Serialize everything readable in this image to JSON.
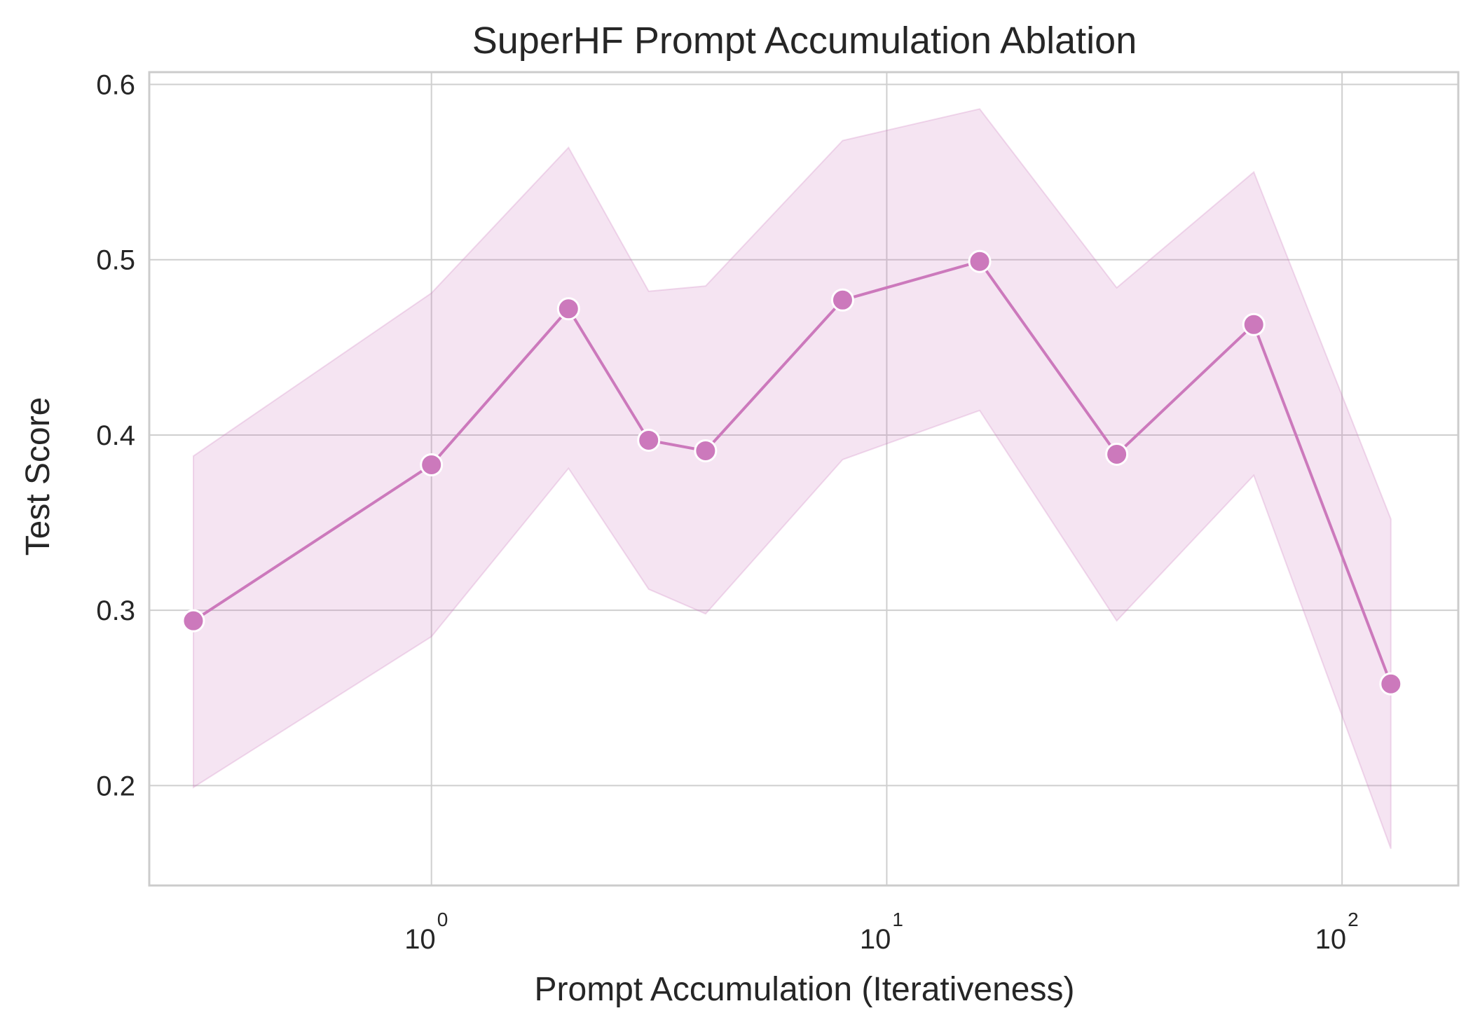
{
  "colors": {
    "series": "#cc79bc",
    "band": "#cc79bc",
    "marker_edge": "#ffffff",
    "grid": "#cfcfcf",
    "text": "#262626"
  },
  "chart_data": {
    "type": "line",
    "title": "SuperHF Prompt Accumulation Ablation",
    "xlabel": "Prompt Accumulation (Iterativeness)",
    "ylabel": "Test Score",
    "xscale": "log",
    "xlim": [
      0.24,
      180
    ],
    "ylim": [
      0.143,
      0.607
    ],
    "grid": true,
    "x_ticks": [
      {
        "base": "10",
        "exp": "0",
        "value": 1
      },
      {
        "base": "10",
        "exp": "1",
        "value": 10
      },
      {
        "base": "10",
        "exp": "2",
        "value": 100
      }
    ],
    "y_ticks": [
      {
        "label": "0.2",
        "value": 0.2
      },
      {
        "label": "0.3",
        "value": 0.3
      },
      {
        "label": "0.4",
        "value": 0.4
      },
      {
        "label": "0.5",
        "value": 0.5
      },
      {
        "label": "0.6",
        "value": 0.6
      }
    ],
    "series": [
      {
        "x": [
          0.3,
          1,
          2,
          3,
          4,
          8,
          16,
          32,
          64,
          128
        ],
        "values": [
          0.294,
          0.383,
          0.472,
          0.397,
          0.391,
          0.477,
          0.499,
          0.389,
          0.463,
          0.258
        ],
        "ci_lower": [
          0.199,
          0.285,
          0.381,
          0.312,
          0.298,
          0.386,
          0.414,
          0.294,
          0.377,
          0.164
        ],
        "ci_upper": [
          0.388,
          0.481,
          0.564,
          0.482,
          0.485,
          0.568,
          0.586,
          0.484,
          0.55,
          0.352
        ]
      }
    ]
  }
}
